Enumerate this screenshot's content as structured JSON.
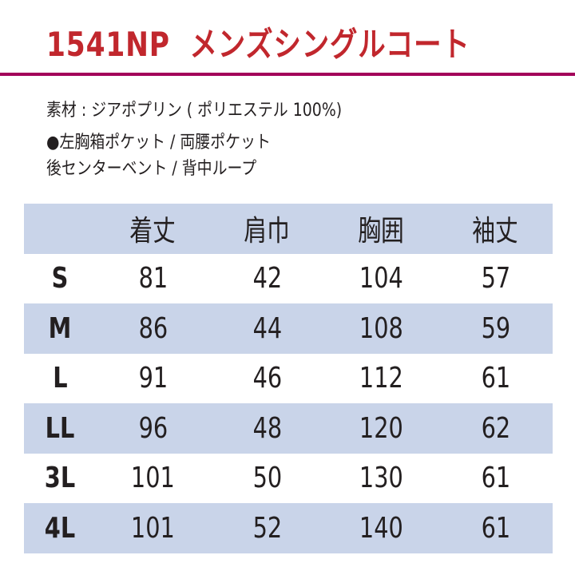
{
  "title": {
    "code": "1541NP",
    "name": "メンズシングルコート"
  },
  "colors": {
    "title": "#c1272d",
    "rule": "#a3005a",
    "band": "#c9d4e9",
    "text": "#231f20"
  },
  "info": {
    "material": "素材 : ジアポプリン ( ポリエステル 100%)",
    "features_line1": "●左胸箱ポケット / 両腰ポケット",
    "features_line2": "後センターベント / 背中ループ"
  },
  "size_table": {
    "headers": [
      "",
      "着丈",
      "肩巾",
      "胸囲",
      "袖丈"
    ],
    "rows": [
      [
        "S",
        "81",
        "42",
        "104",
        "57"
      ],
      [
        "M",
        "86",
        "44",
        "108",
        "59"
      ],
      [
        "L",
        "91",
        "46",
        "112",
        "61"
      ],
      [
        "LL",
        "96",
        "48",
        "120",
        "62"
      ],
      [
        "3L",
        "101",
        "50",
        "130",
        "61"
      ],
      [
        "4L",
        "101",
        "52",
        "140",
        "61"
      ]
    ]
  }
}
